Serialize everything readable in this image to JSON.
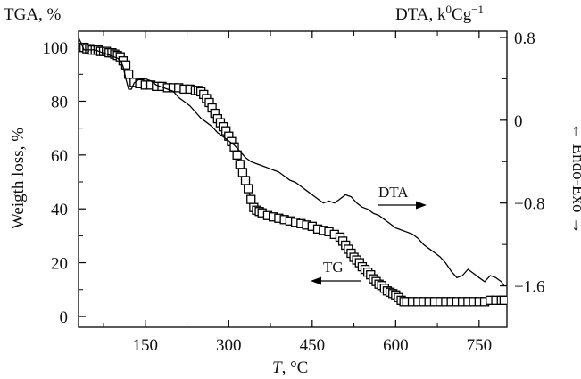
{
  "chart_data": {
    "type": "line",
    "title_left": "TGA, %",
    "title_right": "DTA, k",
    "title_right_sup": "0",
    "title_right_suffix": "Cg",
    "title_right_sup2": "−1",
    "xlabel": "T",
    "xlabel_unit": ", °C",
    "ylabel_left": "Weigth loss, %",
    "ylabel_right": "← Endo-Exo →",
    "xlim": [
      30,
      800
    ],
    "ylim_left": [
      -4,
      106
    ],
    "ylim_right": [
      -2.0,
      0.86
    ],
    "xticks": [
      150,
      300,
      450,
      600,
      750
    ],
    "xtick_labels": [
      "150",
      "300",
      "450",
      "600",
      "750"
    ],
    "yticks_left": [
      0,
      20,
      40,
      60,
      80,
      100
    ],
    "yticks_left_labels": [
      "0",
      "20",
      "40",
      "60",
      "80",
      "100"
    ],
    "yticks_right": [
      0.8,
      0,
      -0.8,
      -1.6
    ],
    "yticks_right_labels": [
      "0.8",
      "0",
      "−0.8",
      "−1.6"
    ],
    "annotations": [
      {
        "text": "DTA",
        "arrow": "right"
      },
      {
        "text": "TG",
        "arrow": "left"
      }
    ],
    "series": [
      {
        "name": "TG",
        "axis": "left",
        "marker": "square",
        "x": [
          30,
          35,
          40,
          45,
          50,
          55,
          60,
          65,
          70,
          75,
          80,
          85,
          90,
          95,
          100,
          105,
          110,
          115,
          120,
          130,
          140,
          150,
          160,
          170,
          180,
          190,
          200,
          210,
          220,
          230,
          240,
          245,
          250,
          255,
          260,
          265,
          270,
          275,
          280,
          285,
          290,
          295,
          300,
          305,
          310,
          315,
          320,
          325,
          330,
          335,
          340,
          345,
          350,
          355,
          360,
          370,
          380,
          390,
          400,
          410,
          420,
          430,
          440,
          450,
          460,
          470,
          480,
          490,
          500,
          505,
          510,
          515,
          520,
          525,
          530,
          535,
          540,
          545,
          550,
          555,
          560,
          565,
          570,
          575,
          580,
          585,
          590,
          595,
          600,
          605,
          610,
          615,
          620,
          630,
          640,
          650,
          660,
          670,
          680,
          690,
          700,
          710,
          720,
          730,
          740,
          750,
          760,
          770,
          780,
          790,
          795
        ],
        "y": [
          100,
          100,
          100,
          99.5,
          99.5,
          99,
          99,
          99,
          98.5,
          98.5,
          98.5,
          98,
          98,
          97.5,
          97,
          96.5,
          95,
          93.5,
          90,
          87,
          86.5,
          86,
          86,
          85.5,
          85.5,
          85,
          85,
          85,
          84.5,
          84.5,
          84,
          84,
          83.5,
          82.5,
          81,
          79.5,
          77.5,
          75.5,
          73.5,
          72,
          70.5,
          69,
          67,
          65,
          63,
          60,
          56.5,
          53.5,
          50.5,
          47.5,
          43.5,
          40.5,
          39.5,
          39,
          38.5,
          37.5,
          37,
          36.5,
          36,
          35.5,
          35,
          34.5,
          34,
          33.5,
          32.5,
          32,
          31.5,
          30.5,
          29.5,
          28,
          26.5,
          25,
          23.5,
          22,
          21,
          20,
          18.5,
          17.5,
          16.5,
          15.5,
          14,
          13,
          12,
          11.5,
          10.5,
          9.5,
          9,
          8.5,
          8,
          7,
          6,
          5.5,
          5.5,
          5.5,
          5.5,
          5.5,
          5.5,
          5.5,
          5.5,
          5.5,
          5.5,
          5.5,
          5.5,
          5.5,
          5.5,
          5.5,
          5.5,
          6,
          6,
          6,
          6
        ]
      },
      {
        "name": "DTA",
        "axis": "right",
        "marker": "none",
        "x": [
          30,
          40,
          50,
          60,
          70,
          80,
          90,
          100,
          105,
          110,
          115,
          120,
          125,
          130,
          135,
          140,
          150,
          160,
          170,
          180,
          190,
          200,
          210,
          220,
          230,
          240,
          250,
          260,
          270,
          280,
          290,
          300,
          310,
          320,
          330,
          340,
          350,
          360,
          370,
          380,
          390,
          400,
          410,
          420,
          430,
          440,
          450,
          460,
          470,
          480,
          490,
          500,
          510,
          520,
          530,
          540,
          550,
          560,
          570,
          580,
          590,
          600,
          610,
          620,
          630,
          640,
          650,
          660,
          670,
          680,
          690,
          700,
          710,
          720,
          730,
          740,
          750,
          760,
          770,
          780,
          790,
          795
        ],
        "y": [
          0.8,
          0.68,
          0.68,
          0.68,
          0.66,
          0.64,
          0.62,
          0.6,
          0.58,
          0.52,
          0.4,
          0.3,
          0.3,
          0.36,
          0.38,
          0.4,
          0.4,
          0.38,
          0.34,
          0.32,
          0.3,
          0.28,
          0.22,
          0.18,
          0.14,
          0.08,
          0.02,
          -0.02,
          -0.06,
          -0.12,
          -0.16,
          -0.2,
          -0.24,
          -0.3,
          -0.36,
          -0.4,
          -0.42,
          -0.44,
          -0.46,
          -0.48,
          -0.5,
          -0.54,
          -0.58,
          -0.6,
          -0.64,
          -0.68,
          -0.72,
          -0.76,
          -0.8,
          -0.78,
          -0.8,
          -0.76,
          -0.72,
          -0.74,
          -0.8,
          -0.84,
          -0.86,
          -0.9,
          -0.92,
          -0.96,
          -1.0,
          -1.04,
          -1.06,
          -1.08,
          -1.1,
          -1.14,
          -1.2,
          -1.24,
          -1.28,
          -1.32,
          -1.38,
          -1.46,
          -1.52,
          -1.5,
          -1.44,
          -1.48,
          -1.52,
          -1.56,
          -1.5,
          -1.52,
          -1.56,
          -1.6
        ]
      }
    ]
  }
}
